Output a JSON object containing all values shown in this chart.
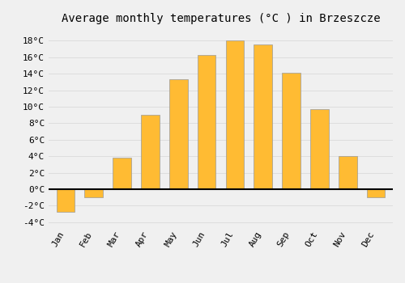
{
  "title": "Average monthly temperatures (°C ) in Brzeszcze",
  "months": [
    "Jan",
    "Feb",
    "Mar",
    "Apr",
    "May",
    "Jun",
    "Jul",
    "Aug",
    "Sep",
    "Oct",
    "Nov",
    "Dec"
  ],
  "values": [
    -2.7,
    -1.0,
    3.8,
    9.0,
    13.3,
    16.3,
    18.0,
    17.5,
    14.1,
    9.7,
    4.0,
    -1.0
  ],
  "bar_color": "#FFBB33",
  "bar_edge_color": "#999999",
  "bar_edge_width": 0.5,
  "ylim": [
    -4.5,
    19.5
  ],
  "yticks": [
    -4,
    -2,
    0,
    2,
    4,
    6,
    8,
    10,
    12,
    14,
    16,
    18
  ],
  "ytick_labels": [
    "-4°C",
    "-2°C",
    "0°C",
    "2°C",
    "4°C",
    "6°C",
    "8°C",
    "10°C",
    "12°C",
    "14°C",
    "16°C",
    "18°C"
  ],
  "background_color": "#F0F0F0",
  "grid_color": "#DDDDDD",
  "zero_line_color": "#000000",
  "title_fontsize": 10,
  "tick_fontsize": 8,
  "font_family": "monospace",
  "bar_width": 0.65
}
